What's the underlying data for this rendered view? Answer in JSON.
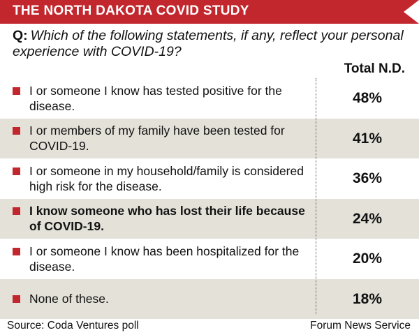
{
  "chart_data": {
    "type": "table",
    "title": "THE NORTH DAKOTA COVID STUDY",
    "question_prefix": "Q:",
    "question": "Which of the following statements, if any, reflect your personal experience with COVID-19?",
    "column_header": "Total N.D.",
    "rows": [
      {
        "label": "I or someone I know has tested positive for the disease.",
        "value": 48,
        "display": "48%",
        "bold": false,
        "shaded": false
      },
      {
        "label": "I or members of my family have been tested for COVID-19.",
        "value": 41,
        "display": "41%",
        "bold": false,
        "shaded": true
      },
      {
        "label": "I or someone in my household/family is considered high risk for the disease.",
        "value": 36,
        "display": "36%",
        "bold": false,
        "shaded": false
      },
      {
        "label": "I know someone who has lost their life because of COVID-19.",
        "value": 24,
        "display": "24%",
        "bold": true,
        "shaded": true
      },
      {
        "label": "I or someone I know has been hospitalized for the disease.",
        "value": 20,
        "display": "20%",
        "bold": false,
        "shaded": false
      },
      {
        "label": "None of these.",
        "value": 18,
        "display": "18%",
        "bold": false,
        "shaded": true
      }
    ],
    "source": "Source: Coda Ventures poll",
    "credit": "Forum News Service"
  },
  "colors": {
    "accent": "#c2272d",
    "row_shade": "#e4e1d9"
  }
}
